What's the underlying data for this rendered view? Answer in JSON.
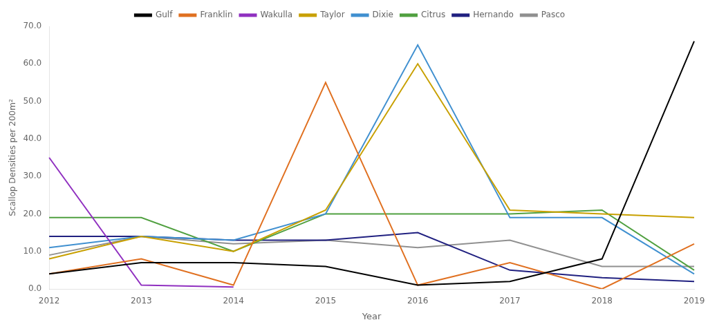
{
  "chart_data": {
    "type": "line",
    "xlabel": "Year",
    "ylabel": "Scallop Densities per 200m²",
    "categories": [
      "2012",
      "2013",
      "2014",
      "2015",
      "2016",
      "2017",
      "2018",
      "2019"
    ],
    "series": [
      {
        "name": "Gulf",
        "color": "#000000",
        "values": [
          4,
          7,
          7,
          6,
          1,
          2,
          8,
          66
        ]
      },
      {
        "name": "Franklin",
        "color": "#E07020",
        "values": [
          4,
          8,
          1,
          55,
          1,
          7,
          0,
          12
        ]
      },
      {
        "name": "Wakulla",
        "color": "#9030C0",
        "values": [
          35,
          1,
          0.5,
          null,
          null,
          null,
          null,
          null
        ]
      },
      {
        "name": "Taylor",
        "color": "#C8A000",
        "values": [
          8,
          14,
          10,
          21,
          60,
          21,
          20,
          19
        ]
      },
      {
        "name": "Dixie",
        "color": "#4090D0",
        "values": [
          11,
          14,
          13,
          20,
          65,
          19,
          19,
          4
        ]
      },
      {
        "name": "Citrus",
        "color": "#50A040",
        "values": [
          19,
          19,
          10,
          20,
          20,
          20,
          21,
          5
        ]
      },
      {
        "name": "Hernando",
        "color": "#202080",
        "values": [
          14,
          14,
          13,
          13,
          15,
          5,
          3,
          2
        ]
      },
      {
        "name": "Pasco",
        "color": "#909090",
        "values": [
          9,
          14,
          12,
          13,
          11,
          13,
          6,
          6
        ]
      }
    ],
    "ylim": [
      0,
      70.0
    ],
    "yticks": [
      {
        "value": 0,
        "label": "0.0"
      },
      {
        "value": 10,
        "label": "10.0"
      },
      {
        "value": 20,
        "label": "20.0"
      },
      {
        "value": 30,
        "label": "30.0"
      },
      {
        "value": 40,
        "label": "40.0"
      },
      {
        "value": 50,
        "label": "50.0"
      },
      {
        "value": 60,
        "label": "60.0"
      },
      {
        "value": 70,
        "label": "70.0"
      }
    ],
    "grid": false,
    "legend": "top"
  }
}
